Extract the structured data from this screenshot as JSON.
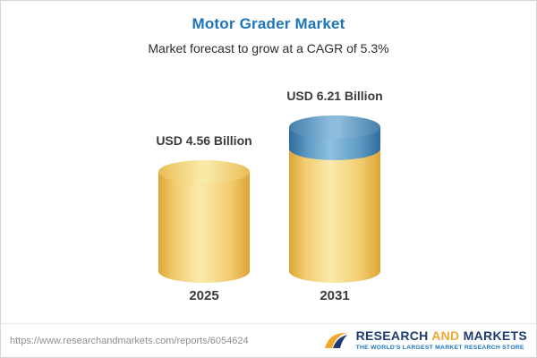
{
  "header": {
    "title": "Motor Grader Market",
    "subtitle": "Market forecast to grow at a CAGR of 5.3%"
  },
  "chart_data": {
    "type": "bar",
    "subtype": "3d-cylinder",
    "title": "Motor Grader Market",
    "subtitle": "Market forecast to grow at a CAGR of 5.3%",
    "categories": [
      "2025",
      "2031"
    ],
    "values": [
      4.56,
      6.21
    ],
    "value_labels": [
      "USD 4.56 Billion",
      "USD 6.21 Billion"
    ],
    "unit": "USD Billion",
    "cagr_percent": 5.3,
    "legend": "none",
    "grid": false,
    "colors": {
      "base_cylinder": "#F2CD70",
      "growth_segment": "#5D9AC4",
      "title_text": "#1C75BC",
      "label_text": "#3B3B3B"
    }
  },
  "footer": {
    "url": "https://www.researchandmarkets.com/reports/6054624",
    "brand": {
      "research": "RESEARCH",
      "and": "AND",
      "markets": "MARKETS",
      "tagline": "THE WORLD'S LARGEST MARKET RESEARCH STORE"
    }
  }
}
